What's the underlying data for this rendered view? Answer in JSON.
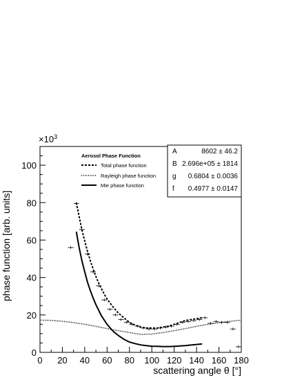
{
  "chart_data": {
    "type": "line",
    "xlabel": "scattering angle θ [°]",
    "ylabel": "phase function [arb. units]",
    "y_exponent_label": "×10",
    "y_exponent_power": "3",
    "xlim": [
      0,
      180
    ],
    "ylim": [
      0,
      110
    ],
    "xticks": [
      0,
      20,
      40,
      60,
      80,
      100,
      120,
      140,
      160,
      180
    ],
    "yticks": [
      0,
      20,
      40,
      60,
      80,
      100
    ],
    "xtick_labels": [
      "0",
      "20",
      "40",
      "60",
      "80",
      "100",
      "120",
      "140",
      "160",
      "180"
    ],
    "ytick_labels": [
      "0",
      "20",
      "40",
      "60",
      "80",
      "100"
    ],
    "grid": false,
    "legend_placement": "top-center",
    "legend": {
      "title": "Aerosol Phase Function",
      "entries": [
        {
          "label": "Total phase function",
          "style": "dashed"
        },
        {
          "label": "Rayleigh phase function",
          "style": "dotted"
        },
        {
          "label": "Mie phase function",
          "style": "solid"
        }
      ]
    },
    "stats_box": [
      {
        "name": "A",
        "value": "8602 ± 46.2"
      },
      {
        "name": "B",
        "value": "2.696e+05 ± 1814"
      },
      {
        "name": "g",
        "value": "0.6804 ± 0.0036"
      },
      {
        "name": "f",
        "value": "0.4977 ± 0.0147"
      }
    ],
    "series": [
      {
        "name": "Total phase function",
        "style": "dashed",
        "x": [
          32.5,
          35,
          37.5,
          40,
          42.5,
          45,
          47.5,
          50,
          52.5,
          55,
          57.5,
          60,
          65,
          70,
          75,
          80,
          85,
          90,
          95,
          100,
          105,
          110,
          115,
          120,
          125,
          130,
          135,
          140,
          145
        ],
        "y": [
          80,
          72.5,
          65.5,
          59.5,
          54,
          49,
          44.5,
          40.5,
          37,
          34,
          31,
          28.5,
          24.5,
          21,
          18.5,
          16,
          14.5,
          13.5,
          13,
          13,
          13,
          13.5,
          14,
          15,
          16,
          17,
          17.5,
          18,
          18.5
        ]
      },
      {
        "name": "Rayleigh phase function",
        "style": "dotted",
        "x": [
          0,
          10,
          20,
          30,
          40,
          50,
          60,
          70,
          80,
          90,
          100,
          110,
          120,
          130,
          140,
          150,
          160,
          170,
          180
        ],
        "y": [
          17.2,
          17.1,
          16.6,
          15.9,
          15.0,
          13.9,
          12.7,
          11.6,
          10.6,
          9.6,
          9.8,
          10.6,
          11.6,
          12.7,
          13.9,
          15.0,
          15.9,
          16.6,
          17.2
        ]
      },
      {
        "name": "Mie phase function",
        "style": "solid",
        "x": [
          32.5,
          35,
          37.5,
          40,
          42.5,
          45,
          47.5,
          50,
          55,
          60,
          65,
          70,
          75,
          80,
          85,
          90,
          95,
          100,
          105,
          110,
          115,
          120,
          125,
          130,
          135,
          140,
          145
        ],
        "y": [
          64.5,
          56,
          49,
          43,
          37.5,
          33,
          29,
          25.5,
          19.5,
          15,
          11.5,
          9,
          7,
          5.5,
          4.7,
          4,
          3.6,
          3.3,
          3.2,
          3.1,
          3.1,
          3.2,
          3.4,
          3.6,
          3.9,
          4.2,
          4.5
        ]
      },
      {
        "name": "",
        "type": "points",
        "x": [
          27.5,
          32.5,
          37.5,
          42.5,
          47.5,
          52.5,
          57.5,
          62.5,
          67.5,
          72.5,
          77.5,
          82.5,
          87.5,
          92.5,
          97.5,
          102.5,
          107.5,
          112.5,
          117.5,
          122.5,
          127.5,
          132.5,
          137.5,
          142.5,
          147.5,
          152.5,
          157.5,
          162.5,
          167.5,
          172.5,
          177.5
        ],
        "y": [
          56,
          79.5,
          65.5,
          52.5,
          43,
          35.5,
          28,
          23,
          20,
          17.5,
          16,
          15,
          14,
          13,
          12.5,
          12.5,
          13,
          13.5,
          14,
          15,
          16,
          16.5,
          17,
          17.5,
          18.5,
          15.5,
          16.5,
          16,
          16,
          12.5,
          3
        ]
      }
    ]
  }
}
